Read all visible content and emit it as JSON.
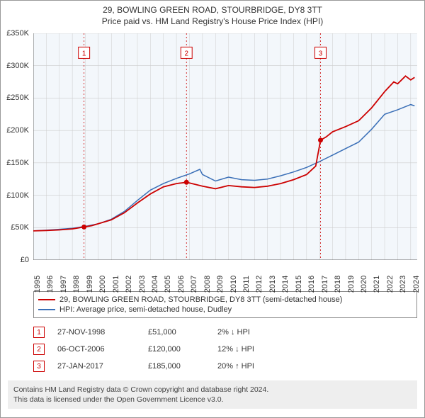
{
  "title": {
    "main": "29, BOWLING GREEN ROAD, STOURBRIDGE, DY8 3TT",
    "sub": "Price paid vs. HM Land Registry's House Price Index (HPI)"
  },
  "chart": {
    "type": "line",
    "background_color": "#ffffff",
    "grid_color": "#cccccc",
    "shaded_band": {
      "from": 1995,
      "to": 2024.5,
      "color": "rgba(80,140,200,0.07)"
    },
    "xlim": [
      1995,
      2024.5
    ],
    "ylim": [
      0,
      350000
    ],
    "ytick_step": 50000,
    "ytick_prefix": "£",
    "ytick_suffix": "K",
    "yticks": [
      "£0",
      "£50K",
      "£100K",
      "£150K",
      "£200K",
      "£250K",
      "£300K",
      "£350K"
    ],
    "xticks": [
      1995,
      1996,
      1997,
      1998,
      1999,
      2000,
      2001,
      2002,
      2003,
      2004,
      2005,
      2006,
      2007,
      2008,
      2009,
      2010,
      2011,
      2012,
      2013,
      2014,
      2015,
      2016,
      2017,
      2018,
      2019,
      2020,
      2021,
      2022,
      2023,
      2024
    ],
    "series": [
      {
        "id": "property",
        "label": "29, BOWLING GREEN ROAD, STOURBRIDGE, DY8 3TT (semi-detached house)",
        "color": "#cc0000",
        "line_width": 1.8,
        "data": [
          [
            1995,
            45000
          ],
          [
            1996,
            45500
          ],
          [
            1997,
            46500
          ],
          [
            1998,
            48000
          ],
          [
            1998.9,
            51000
          ],
          [
            1999.5,
            53000
          ],
          [
            2000,
            56000
          ],
          [
            2001,
            62000
          ],
          [
            2002,
            73000
          ],
          [
            2003,
            88000
          ],
          [
            2004,
            102000
          ],
          [
            2005,
            113000
          ],
          [
            2006,
            118000
          ],
          [
            2006.77,
            120000
          ],
          [
            2007,
            119000
          ],
          [
            2008,
            114000
          ],
          [
            2009,
            110000
          ],
          [
            2010,
            115000
          ],
          [
            2011,
            113000
          ],
          [
            2012,
            112000
          ],
          [
            2013,
            114000
          ],
          [
            2014,
            118000
          ],
          [
            2015,
            124000
          ],
          [
            2016,
            132000
          ],
          [
            2016.7,
            145000
          ],
          [
            2017.07,
            185000
          ],
          [
            2017.5,
            190000
          ],
          [
            2018,
            198000
          ],
          [
            2019,
            206000
          ],
          [
            2020,
            215000
          ],
          [
            2021,
            235000
          ],
          [
            2022,
            260000
          ],
          [
            2022.7,
            275000
          ],
          [
            2023,
            272000
          ],
          [
            2023.6,
            284000
          ],
          [
            2024,
            278000
          ],
          [
            2024.3,
            282000
          ]
        ]
      },
      {
        "id": "hpi",
        "label": "HPI: Average price, semi-detached house, Dudley",
        "color": "#3a6fb7",
        "line_width": 1.5,
        "data": [
          [
            1995,
            45000
          ],
          [
            1996,
            46000
          ],
          [
            1997,
            47500
          ],
          [
            1998,
            49000
          ],
          [
            1999,
            52000
          ],
          [
            2000,
            56000
          ],
          [
            2001,
            63000
          ],
          [
            2002,
            75000
          ],
          [
            2003,
            92000
          ],
          [
            2004,
            108000
          ],
          [
            2005,
            118000
          ],
          [
            2006,
            126000
          ],
          [
            2007,
            133000
          ],
          [
            2007.8,
            140000
          ],
          [
            2008,
            132000
          ],
          [
            2009,
            122000
          ],
          [
            2010,
            128000
          ],
          [
            2011,
            124000
          ],
          [
            2012,
            123000
          ],
          [
            2013,
            125000
          ],
          [
            2014,
            130000
          ],
          [
            2015,
            136000
          ],
          [
            2016,
            143000
          ],
          [
            2017,
            152000
          ],
          [
            2018,
            162000
          ],
          [
            2019,
            172000
          ],
          [
            2020,
            182000
          ],
          [
            2021,
            202000
          ],
          [
            2022,
            225000
          ],
          [
            2023,
            232000
          ],
          [
            2024,
            240000
          ],
          [
            2024.3,
            238000
          ]
        ]
      }
    ],
    "sale_markers": [
      {
        "n": 1,
        "x": 1998.9,
        "y": 51000,
        "label_y": 320000,
        "color": "#cc0000"
      },
      {
        "n": 2,
        "x": 2006.77,
        "y": 120000,
        "label_y": 320000,
        "color": "#cc0000"
      },
      {
        "n": 3,
        "x": 2017.07,
        "y": 185000,
        "label_y": 320000,
        "color": "#cc0000"
      }
    ],
    "marker_line_color": "#cc0000",
    "marker_dot_radius": 3.5,
    "label_fontsize": 11
  },
  "legend": {
    "items": [
      {
        "color": "#cc0000",
        "label": "29, BOWLING GREEN ROAD, STOURBRIDGE, DY8 3TT (semi-detached house)"
      },
      {
        "color": "#3a6fb7",
        "label": "HPI: Average price, semi-detached house, Dudley"
      }
    ]
  },
  "sales": [
    {
      "n": "1",
      "date": "27-NOV-1998",
      "price": "£51,000",
      "delta": "2% ↓ HPI",
      "box_color": "#cc0000"
    },
    {
      "n": "2",
      "date": "06-OCT-2006",
      "price": "£120,000",
      "delta": "12% ↓ HPI",
      "box_color": "#cc0000"
    },
    {
      "n": "3",
      "date": "27-JAN-2017",
      "price": "£185,000",
      "delta": "20% ↑ HPI",
      "box_color": "#cc0000"
    }
  ],
  "footer": {
    "line1": "Contains HM Land Registry data © Crown copyright and database right 2024.",
    "line2": "This data is licensed under the Open Government Licence v3.0."
  }
}
